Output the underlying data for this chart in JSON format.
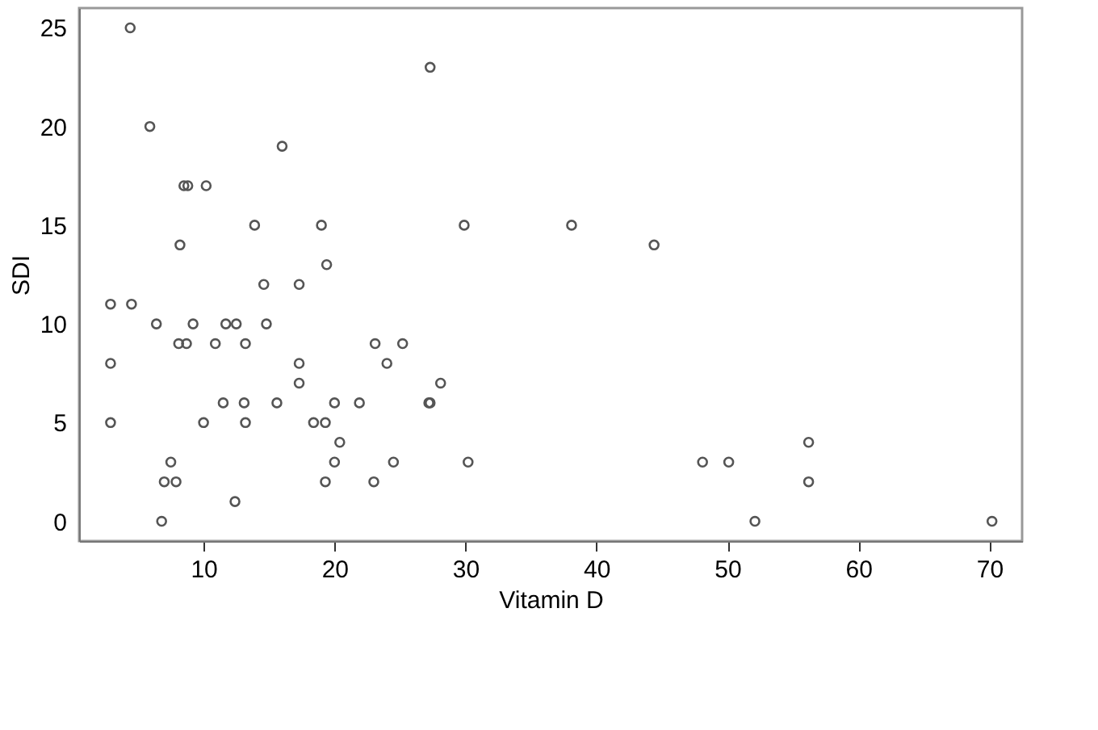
{
  "chart_data": {
    "type": "scatter",
    "xlabel": "Vitamin D",
    "ylabel": "SDI",
    "xlim": [
      0.5,
      72.5
    ],
    "ylim": [
      -1,
      26
    ],
    "xticks": [
      10,
      20,
      30,
      40,
      50,
      60,
      70
    ],
    "yticks": [
      0,
      5,
      10,
      15,
      20,
      25
    ],
    "grid": false,
    "marker": "circle",
    "series": [
      {
        "color": "#555555",
        "x": [
          4.4,
          5.9,
          8.5,
          8.8,
          10.2,
          16.0,
          8.2,
          13.9,
          19.0,
          19.4,
          14.6,
          17.3,
          2.9,
          4.5,
          6.4,
          9.2,
          11.7,
          12.5,
          14.8,
          8.1,
          8.7,
          10.9,
          13.2,
          23.1,
          25.2,
          2.9,
          17.3,
          17.3,
          11.5,
          13.1,
          15.6,
          20.0,
          21.9,
          2.9,
          10.0,
          13.2,
          18.4,
          19.3,
          20.4,
          7.5,
          20.0,
          7.0,
          7.9,
          19.3,
          23.0,
          12.4,
          6.8,
          24.0,
          27.2,
          27.3,
          28.1,
          24.5,
          30.2,
          48.1,
          27.3,
          29.9,
          38.1,
          44.4,
          50.1,
          52.1,
          56.2,
          56.2,
          70.2
        ],
        "values": [
          25,
          20,
          17,
          17,
          17,
          19,
          14,
          15,
          15,
          13,
          12,
          12,
          11,
          11,
          10,
          10,
          10,
          10,
          10,
          9,
          9,
          9,
          9,
          9,
          9,
          8,
          8,
          7,
          6,
          6,
          6,
          6,
          6,
          5,
          5,
          5,
          5,
          5,
          4,
          3,
          3,
          2,
          2,
          2,
          2,
          1,
          0,
          8,
          6,
          6,
          7,
          3,
          3,
          3,
          23,
          15,
          15,
          14,
          3,
          0,
          4,
          2,
          0
        ]
      }
    ]
  }
}
